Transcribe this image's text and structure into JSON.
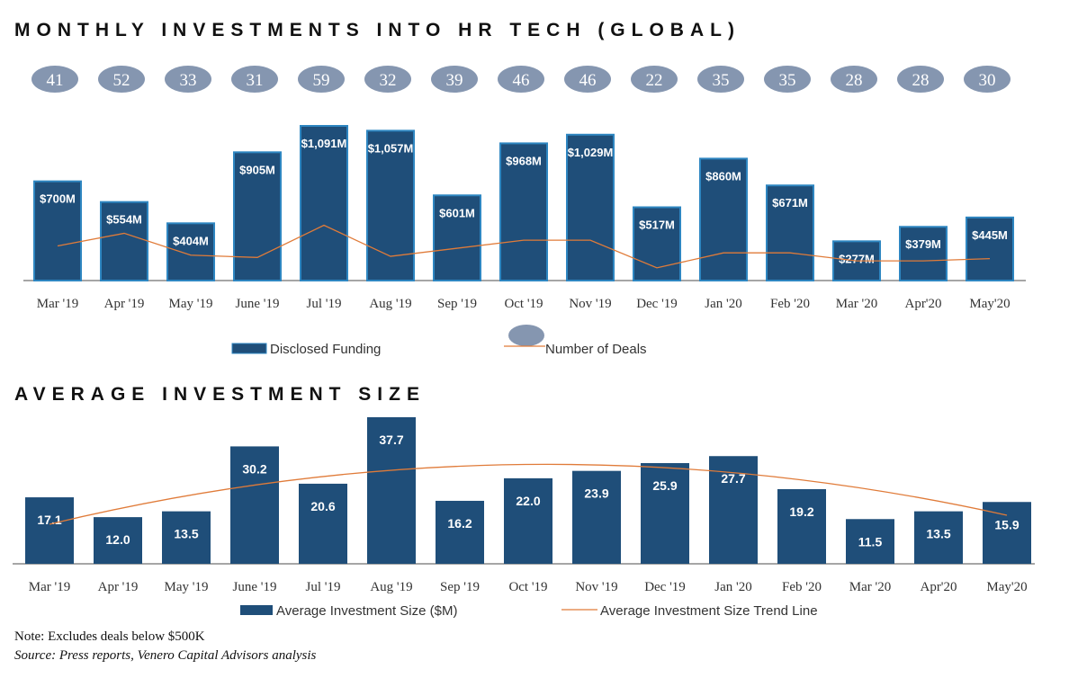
{
  "title_top": "MONTHLY INVESTMENTS INTO HR TECH (GLOBAL)",
  "title_bottom": "AVERAGE INVESTMENT SIZE",
  "note": "Note: Excludes deals below $500K",
  "source": "Source: Press reports, Venero Capital Advisors analysis",
  "colors": {
    "bar": "#1f4e79",
    "bar_stroke": "#2e86c1",
    "line": "#e07b39",
    "bubble": "#8596b0",
    "axis": "#555555"
  },
  "chart_data": [
    {
      "type": "bar",
      "title": "MONTHLY INVESTMENTS INTO HR TECH (GLOBAL)",
      "categories": [
        "Mar '19",
        "Apr '19",
        "May '19",
        "June '19",
        "Jul '19",
        "Aug '19",
        "Sep '19",
        "Oct '19",
        "Nov '19",
        "Dec '19",
        "Jan '20",
        "Feb '20",
        "Mar '20",
        "Apr'20",
        "May'20"
      ],
      "series": [
        {
          "name": "Disclosed Funding",
          "type": "bar",
          "values": [
            700,
            554,
            404,
            905,
            1091,
            1057,
            601,
            968,
            1029,
            517,
            860,
            671,
            277,
            379,
            445
          ],
          "labels": [
            "$700M",
            "$554M",
            "$404M",
            "$905M",
            "$1,091M",
            "$1,057M",
            "$601M",
            "$968M",
            "$1,029M",
            "$517M",
            "$860M",
            "$671M",
            "$277M",
            "$379M",
            "$445M"
          ]
        },
        {
          "name": "Number of Deals",
          "type": "line",
          "values": [
            41,
            52,
            33,
            31,
            59,
            32,
            39,
            46,
            46,
            22,
            35,
            35,
            28,
            28,
            30
          ]
        }
      ],
      "legend_position": "bottom",
      "grid": false
    },
    {
      "type": "bar",
      "title": "AVERAGE INVESTMENT SIZE",
      "categories": [
        "Mar '19",
        "Apr '19",
        "May '19",
        "June '19",
        "Jul '19",
        "Aug '19",
        "Sep '19",
        "Oct '19",
        "Nov '19",
        "Dec '19",
        "Jan '20",
        "Feb '20",
        "Mar '20",
        "Apr'20",
        "May'20"
      ],
      "series": [
        {
          "name": "Average Investment Size ($M)",
          "type": "bar",
          "values": [
            17.1,
            12.0,
            13.5,
            30.2,
            20.6,
            37.7,
            16.2,
            22.0,
            23.9,
            25.9,
            27.7,
            19.2,
            11.5,
            13.5,
            15.9
          ],
          "labels": [
            "17.1",
            "12.0",
            "13.5",
            "30.2",
            "20.6",
            "37.7",
            "16.2",
            "22.0",
            "23.9",
            "25.9",
            "27.7",
            "19.2",
            "11.5",
            "13.5",
            "15.9"
          ]
        },
        {
          "name": "Average Investment Size Trend Line",
          "type": "line",
          "trend": "polynomial"
        }
      ],
      "legend_position": "bottom",
      "grid": false
    }
  ]
}
